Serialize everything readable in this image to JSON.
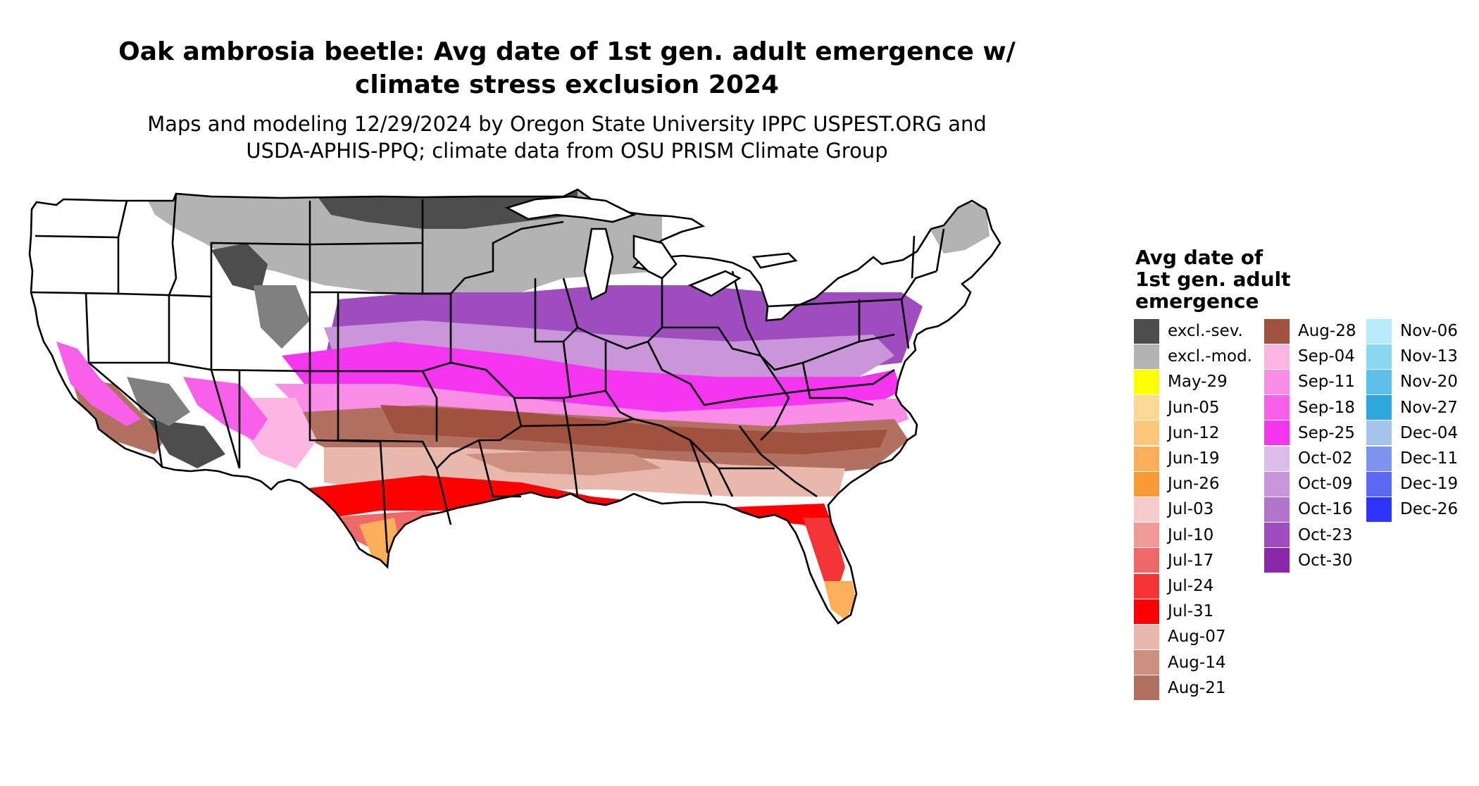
{
  "title_lines": [
    "Oak ambrosia beetle: Avg date of 1st gen. adult emergence w/",
    "climate stress exclusion 2024"
  ],
  "subtitle_lines": [
    "Maps and modeling 12/29/2024 by Oregon State University IPPC USPEST.ORG and",
    "USDA-APHIS-PPQ; climate data from OSU PRISM Climate Group"
  ],
  "legend": {
    "title_lines": [
      "Avg date of",
      "1st gen. adult",
      "emergence"
    ],
    "items": [
      {
        "label": "excl.-sev.",
        "color": "#4d4d4d"
      },
      {
        "label": "excl.-mod.",
        "color": "#b3b3b3"
      },
      {
        "label": "May-29",
        "color": "#ffff00"
      },
      {
        "label": "Jun-05",
        "color": "#fdd995"
      },
      {
        "label": "Jun-12",
        "color": "#fdc87a"
      },
      {
        "label": "Jun-19",
        "color": "#fbb057"
      },
      {
        "label": "Jun-26",
        "color": "#f99a36"
      },
      {
        "label": "Jul-03",
        "color": "#f4cccc"
      },
      {
        "label": "Jul-10",
        "color": "#f29a96"
      },
      {
        "label": "Jul-17",
        "color": "#f0696a"
      },
      {
        "label": "Jul-24",
        "color": "#f53535"
      },
      {
        "label": "Jul-31",
        "color": "#ff0000"
      },
      {
        "label": "Aug-07",
        "color": "#e8b8ac"
      },
      {
        "label": "Aug-14",
        "color": "#cd9080"
      },
      {
        "label": "Aug-21",
        "color": "#b27060"
      },
      {
        "label": "Aug-28",
        "color": "#a0523d"
      },
      {
        "label": "Sep-04",
        "color": "#fbb6e1"
      },
      {
        "label": "Sep-11",
        "color": "#fa8ee6"
      },
      {
        "label": "Sep-18",
        "color": "#f860ea"
      },
      {
        "label": "Sep-25",
        "color": "#f535ef"
      },
      {
        "label": "Oct-02",
        "color": "#dcbde8"
      },
      {
        "label": "Oct-09",
        "color": "#c996d9"
      },
      {
        "label": "Oct-16",
        "color": "#b374cc"
      },
      {
        "label": "Oct-23",
        "color": "#9e4dbe"
      },
      {
        "label": "Oct-30",
        "color": "#8b28aa"
      },
      {
        "label": "Nov-06",
        "color": "#b7edfb"
      },
      {
        "label": "Nov-13",
        "color": "#8ad8f2"
      },
      {
        "label": "Nov-20",
        "color": "#5ec0e8"
      },
      {
        "label": "Nov-27",
        "color": "#2ea8dc"
      },
      {
        "label": "Dec-04",
        "color": "#a4c4ec"
      },
      {
        "label": "Dec-11",
        "color": "#7e93ef"
      },
      {
        "label": "Dec-19",
        "color": "#5a68f4"
      },
      {
        "label": "Dec-26",
        "color": "#2e34f9"
      }
    ]
  }
}
